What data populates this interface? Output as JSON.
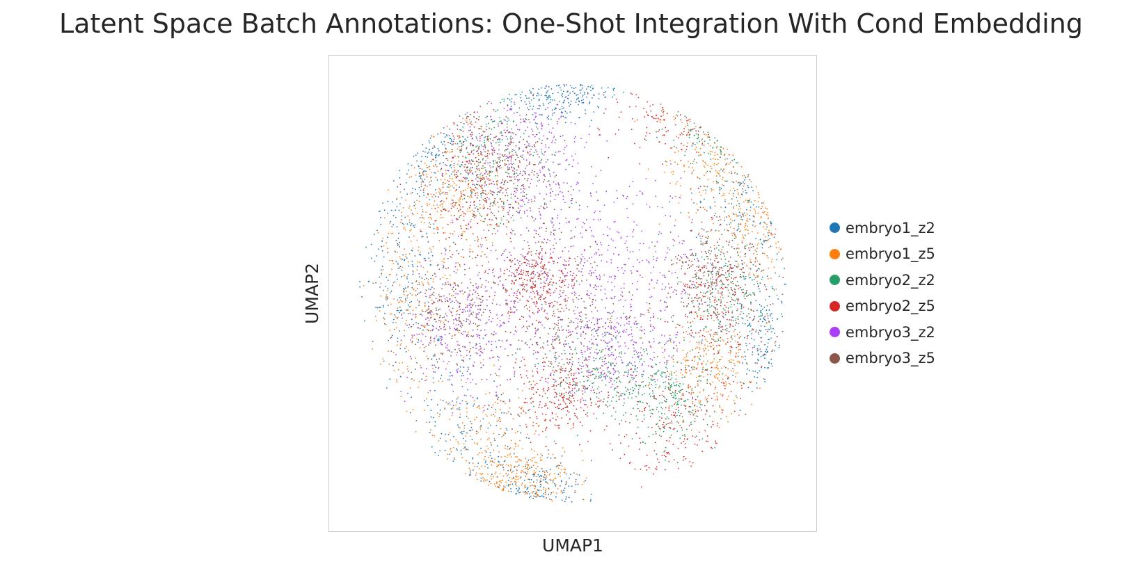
{
  "chart_data": {
    "type": "scatter",
    "title": "Latent Space Batch Annotations: One-Shot Integration With Cond Embedding",
    "xlabel": "UMAP1",
    "ylabel": "UMAP2",
    "grid": false,
    "legend_position": "right",
    "series": [
      {
        "name": "embryo1_z2",
        "color": "#1f77b4"
      },
      {
        "name": "embryo1_z5",
        "color": "#ff7f0e"
      },
      {
        "name": "embryo2_z2",
        "color": "#279e68"
      },
      {
        "name": "embryo2_z5",
        "color": "#d62728"
      },
      {
        "name": "embryo3_z2",
        "color": "#aa40fc"
      },
      {
        "name": "embryo3_z5",
        "color": "#8c564b"
      }
    ]
  }
}
